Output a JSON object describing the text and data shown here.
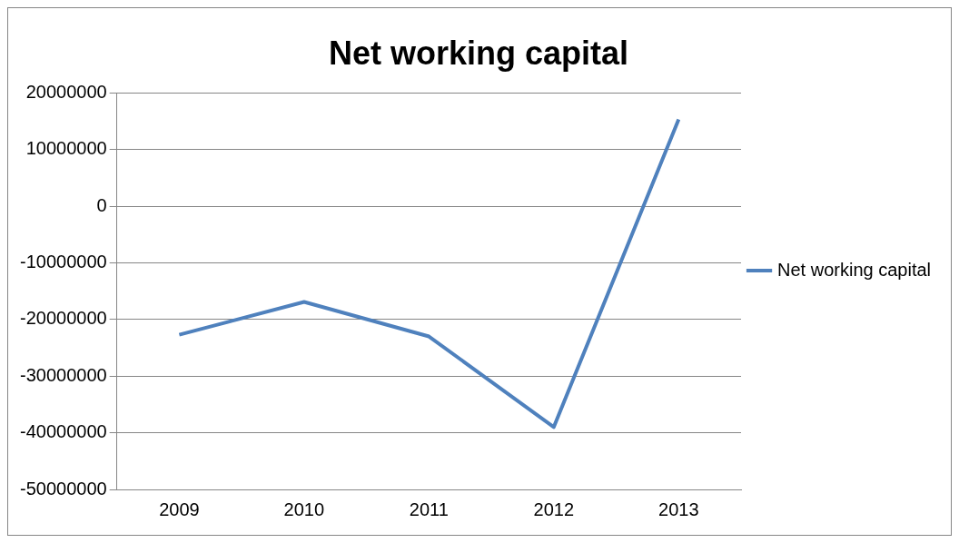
{
  "chart_data": {
    "type": "line",
    "title": "Net working capital",
    "categories": [
      "2009",
      "2010",
      "2011",
      "2012",
      "2013"
    ],
    "series": [
      {
        "name": "Net working capital",
        "color": "#4f81bd",
        "values": [
          -22700000,
          -16900000,
          -23000000,
          -39000000,
          15300000
        ]
      }
    ],
    "ylim": [
      -50000000,
      20000000
    ],
    "yticks": [
      -50000000,
      -40000000,
      -30000000,
      -20000000,
      -10000000,
      0,
      10000000,
      20000000
    ],
    "grid": "y",
    "legend": "right",
    "marker": "none",
    "line_style": "solid"
  }
}
